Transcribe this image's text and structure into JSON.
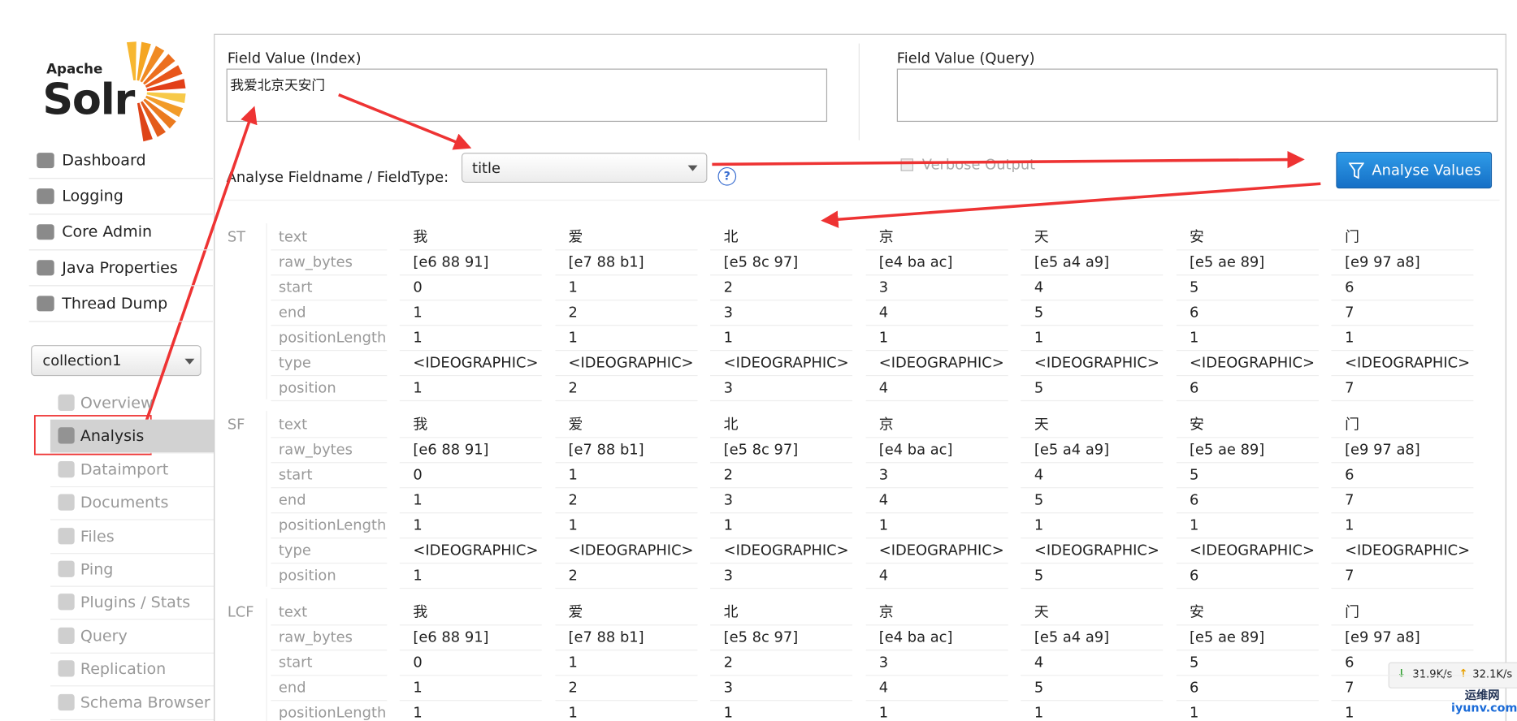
{
  "logo": {
    "small": "Apache",
    "big": "Solr"
  },
  "nav": [
    "Dashboard",
    "Logging",
    "Core Admin",
    "Java Properties",
    "Thread Dump"
  ],
  "core_selector": "collection1",
  "core_menu": [
    "Overview",
    "Analysis",
    "Dataimport",
    "Documents",
    "Files",
    "Ping",
    "Plugins / Stats",
    "Query",
    "Replication",
    "Schema Browser"
  ],
  "form": {
    "index_label": "Field Value (Index)",
    "index_value": "我爱北京天安门",
    "query_label": "Field Value (Query)",
    "fieldtype_label": "Analyse Fieldname / FieldType:",
    "fieldtype_value": "title",
    "help": "?",
    "verbose_label": "Verbose Output",
    "button": "Analyse Values"
  },
  "stages": [
    {
      "name": "ST",
      "rows": [
        {
          "attr": "text",
          "values": [
            "我",
            "爱",
            "北",
            "京",
            "天",
            "安",
            "门"
          ]
        },
        {
          "attr": "raw_bytes",
          "values": [
            "[e6 88 91]",
            "[e7 88 b1]",
            "[e5 8c 97]",
            "[e4 ba ac]",
            "[e5 a4 a9]",
            "[e5 ae 89]",
            "[e9 97 a8]"
          ]
        },
        {
          "attr": "start",
          "values": [
            0,
            1,
            2,
            3,
            4,
            5,
            6
          ]
        },
        {
          "attr": "end",
          "values": [
            1,
            2,
            3,
            4,
            5,
            6,
            7
          ]
        },
        {
          "attr": "positionLength",
          "values": [
            1,
            1,
            1,
            1,
            1,
            1,
            1
          ]
        },
        {
          "attr": "type",
          "values": [
            "<IDEOGRAPHIC>",
            "<IDEOGRAPHIC>",
            "<IDEOGRAPHIC>",
            "<IDEOGRAPHIC>",
            "<IDEOGRAPHIC>",
            "<IDEOGRAPHIC>",
            "<IDEOGRAPHIC>"
          ]
        },
        {
          "attr": "position",
          "values": [
            1,
            2,
            3,
            4,
            5,
            6,
            7
          ]
        }
      ]
    },
    {
      "name": "SF",
      "rows": [
        {
          "attr": "text",
          "values": [
            "我",
            "爱",
            "北",
            "京",
            "天",
            "安",
            "门"
          ]
        },
        {
          "attr": "raw_bytes",
          "values": [
            "[e6 88 91]",
            "[e7 88 b1]",
            "[e5 8c 97]",
            "[e4 ba ac]",
            "[e5 a4 a9]",
            "[e5 ae 89]",
            "[e9 97 a8]"
          ]
        },
        {
          "attr": "start",
          "values": [
            0,
            1,
            2,
            3,
            4,
            5,
            6
          ]
        },
        {
          "attr": "end",
          "values": [
            1,
            2,
            3,
            4,
            5,
            6,
            7
          ]
        },
        {
          "attr": "positionLength",
          "values": [
            1,
            1,
            1,
            1,
            1,
            1,
            1
          ]
        },
        {
          "attr": "type",
          "values": [
            "<IDEOGRAPHIC>",
            "<IDEOGRAPHIC>",
            "<IDEOGRAPHIC>",
            "<IDEOGRAPHIC>",
            "<IDEOGRAPHIC>",
            "<IDEOGRAPHIC>",
            "<IDEOGRAPHIC>"
          ]
        },
        {
          "attr": "position",
          "values": [
            1,
            2,
            3,
            4,
            5,
            6,
            7
          ]
        }
      ]
    },
    {
      "name": "LCF",
      "rows": [
        {
          "attr": "text",
          "values": [
            "我",
            "爱",
            "北",
            "京",
            "天",
            "安",
            "门"
          ]
        },
        {
          "attr": "raw_bytes",
          "values": [
            "[e6 88 91]",
            "[e7 88 b1]",
            "[e5 8c 97]",
            "[e4 ba ac]",
            "[e5 a4 a9]",
            "[e5 ae 89]",
            "[e9 97 a8]"
          ]
        },
        {
          "attr": "start",
          "values": [
            0,
            1,
            2,
            3,
            4,
            5,
            6
          ]
        },
        {
          "attr": "end",
          "values": [
            1,
            2,
            3,
            4,
            5,
            6,
            7
          ]
        },
        {
          "attr": "positionLength",
          "values": [
            1,
            1,
            1,
            1,
            1,
            1,
            1
          ]
        }
      ]
    }
  ],
  "overlay": {
    "down": "31.9K/s",
    "up": "32.1K/s",
    "site": "运维网",
    "url": "iyunv.com"
  }
}
